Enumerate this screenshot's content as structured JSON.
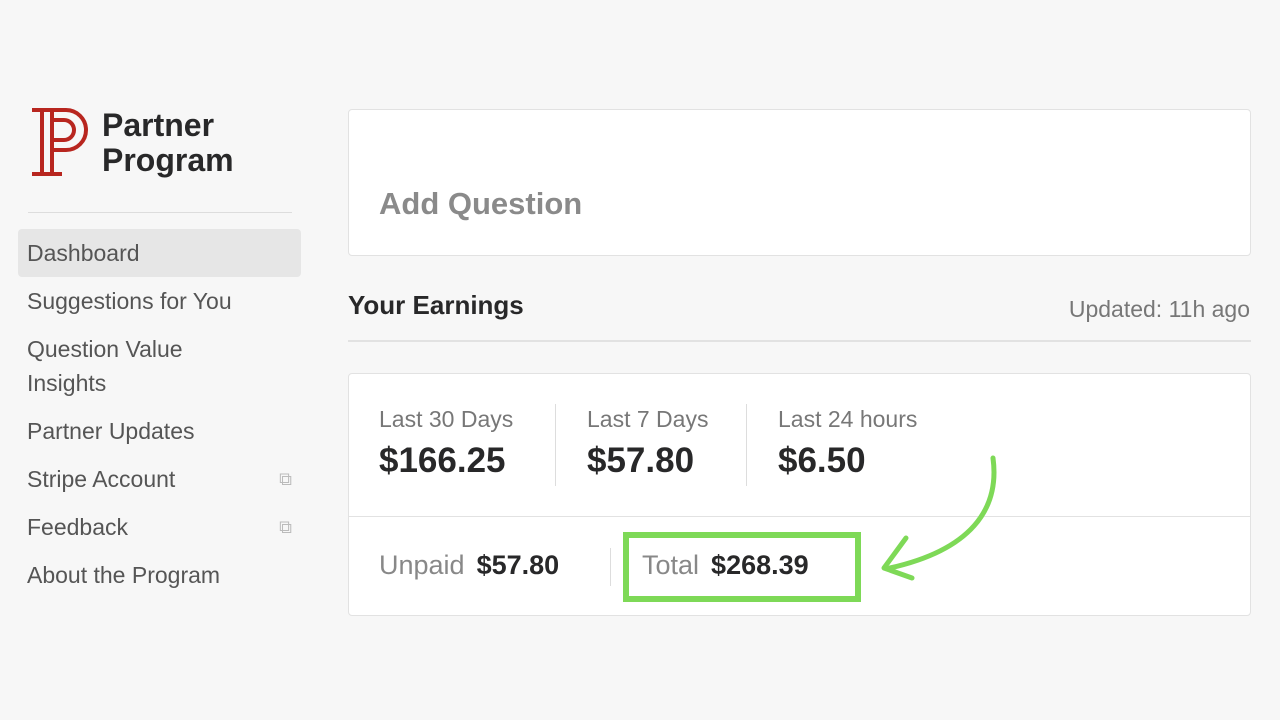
{
  "brand": {
    "line1": "Partner",
    "line2": "Program",
    "accent": "#b8261f"
  },
  "sidebar": {
    "items": [
      {
        "label": "Dashboard",
        "active": true
      },
      {
        "label": "Suggestions for You"
      },
      {
        "label": "Question Value Insights"
      },
      {
        "label": "Partner Updates"
      },
      {
        "label": "Stripe Account",
        "icon": "external-link-icon"
      },
      {
        "label": "Feedback",
        "icon": "external-link-icon"
      },
      {
        "label": "About the Program"
      }
    ]
  },
  "add_question": {
    "label": "Add Question"
  },
  "earnings": {
    "title": "Your Earnings",
    "updated": "Updated: 11h ago",
    "stats": [
      {
        "label": "Last 30 Days",
        "value": "$166.25"
      },
      {
        "label": "Last 7 Days",
        "value": "$57.80"
      },
      {
        "label": "Last 24 hours",
        "value": "$6.50"
      }
    ],
    "unpaid": {
      "label": "Unpaid",
      "value": "$57.80"
    },
    "total": {
      "label": "Total",
      "value": "$268.39"
    },
    "highlight_color": "#7ed957"
  }
}
